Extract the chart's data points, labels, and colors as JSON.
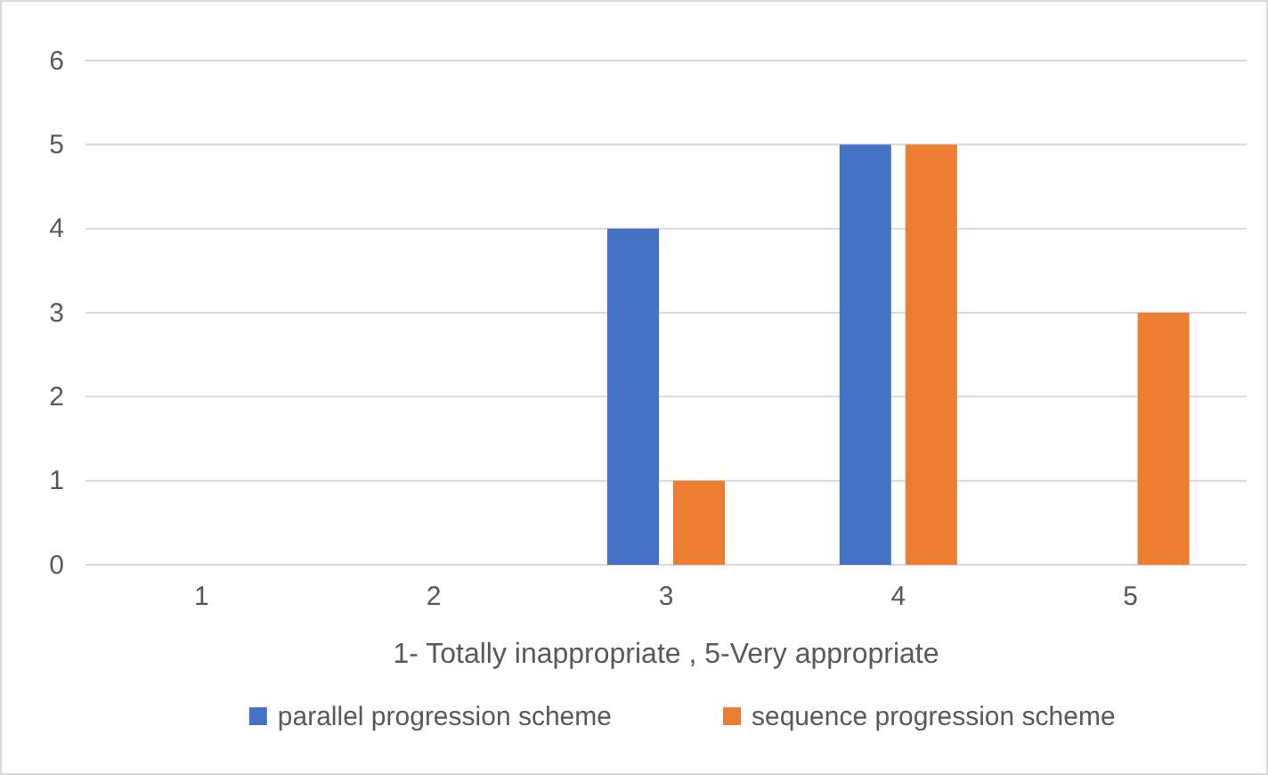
{
  "chart_data": {
    "type": "bar",
    "xlabel": "1- Totally inappropriate , 5-Very appropriate",
    "categories": [
      "1",
      "2",
      "3",
      "4",
      "5"
    ],
    "series": [
      {
        "name": "parallel progression scheme",
        "color": "#4472c4",
        "values": [
          0,
          0,
          4,
          5,
          0
        ]
      },
      {
        "name": "sequence progression scheme",
        "color": "#ed7d31",
        "values": [
          0,
          0,
          1,
          5,
          3
        ]
      }
    ],
    "ylim": [
      0,
      6
    ],
    "yticks": [
      0,
      1,
      2,
      3,
      4,
      5,
      6
    ],
    "grid": "y",
    "legend": "bottom"
  }
}
